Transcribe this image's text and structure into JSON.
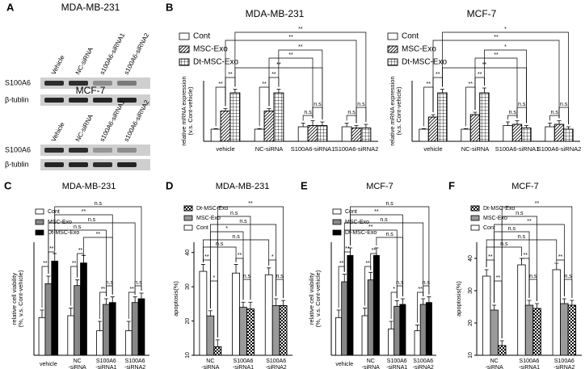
{
  "blot": {
    "panel": "A",
    "groups": [
      {
        "title": "MDA-MB-231",
        "lanes": [
          "Vehicle",
          "NC-siRNA",
          "s100A6-siRNA1",
          "s100A6-siRNA2"
        ],
        "rows": [
          "S100A6",
          "β-tublin"
        ]
      },
      {
        "title": "MCF-7",
        "lanes": [
          "Vehicle",
          "NC-siRNA",
          "s100A6-siRNA1",
          "s100A6-siRNA2"
        ],
        "rows": [
          "S100A6",
          "β-tublin"
        ]
      }
    ]
  },
  "chart_data": [
    {
      "type": "bar",
      "panel": "B",
      "title": "MDA-MB-231",
      "ylabel": "relative mRNA expression\n(v.s. Cont-vehicle)",
      "categories": [
        "vehicle",
        "NC-siRNA",
        "S100A6-siRNA1",
        "S100A6-siRNA2"
      ],
      "series": [
        {
          "name": "Cont",
          "color": "#ffffff",
          "pattern": "none",
          "values": [
            1,
            1,
            1.2,
            1.2
          ],
          "errors": [
            0.05,
            0.05,
            0.3,
            0.3
          ]
        },
        {
          "name": "MSC-Exo",
          "color": "#ffffff",
          "pattern": "diagonal",
          "values": [
            2.5,
            2.5,
            1.3,
            1.1
          ],
          "errors": [
            0.2,
            0.2,
            0.4,
            0.2
          ]
        },
        {
          "name": "Dt-MSC-Exo",
          "color": "#ffffff",
          "pattern": "grid",
          "values": [
            4,
            4,
            1.3,
            1.1
          ],
          "errors": [
            0.3,
            0.3,
            0.3,
            0.3
          ]
        }
      ],
      "ylim": [
        0,
        5
      ],
      "legend": "upper left",
      "legend_order": "normal",
      "annotations": [
        "**",
        "**",
        "**",
        "**",
        "n.s",
        "n.s",
        "n.s",
        "n.s",
        "**",
        "**",
        "**",
        "**",
        "**"
      ]
    },
    {
      "type": "bar",
      "title": "MCF-7",
      "ylabel": "relative mRNA expression\n(v.s. Cont-vehicle)",
      "categories": [
        "vehicle",
        "NC-siRNA",
        "S100A6-siRNA1",
        "S100A6-siRNA2"
      ],
      "series": [
        {
          "name": "Cont",
          "color": "#ffffff",
          "pattern": "none",
          "values": [
            1,
            1,
            1.3,
            1.2
          ],
          "errors": [
            0.05,
            0.05,
            0.3,
            0.3
          ]
        },
        {
          "name": "MSC-Exo",
          "color": "#ffffff",
          "pattern": "diagonal",
          "values": [
            2,
            2.2,
            1.4,
            1.4
          ],
          "errors": [
            0.2,
            0.2,
            0.3,
            0.3
          ]
        },
        {
          "name": "Dt-MSC-Exo",
          "color": "#ffffff",
          "pattern": "grid",
          "values": [
            4,
            4,
            1.1,
            1
          ],
          "errors": [
            0.3,
            0.4,
            0.2,
            0.2
          ]
        }
      ],
      "ylim": [
        0,
        5
      ],
      "legend": "upper left",
      "legend_order": "normal",
      "annotations": [
        "**",
        "**",
        "**",
        "**",
        "n.s",
        "n.s",
        "n.s",
        "n.s",
        "*",
        "**",
        "*",
        "**",
        "**"
      ]
    },
    {
      "type": "bar",
      "panel": "C",
      "title": "MDA-MB-231",
      "ylabel": "relative cell viability\n(%, v.s. Cont-vehicle)",
      "categories": [
        "vehicle",
        "NC\n-siRNA",
        "S100A6\n-siRNA1",
        "S100A6\n-siRNA2"
      ],
      "series": [
        {
          "name": "Cont",
          "color": "#ffffff",
          "pattern": "none",
          "values": [
            100,
            101,
            93,
            93
          ],
          "errors": [
            4,
            4,
            5,
            5
          ]
        },
        {
          "name": "MSC-Exo",
          "color": "#888888",
          "pattern": "none",
          "values": [
            118,
            117,
            107,
            108
          ],
          "errors": [
            4,
            3,
            3,
            3
          ]
        },
        {
          "name": "Dt-MSC-Exo",
          "color": "#000000",
          "pattern": "none",
          "values": [
            130,
            129,
            108,
            110
          ],
          "errors": [
            4,
            4,
            3,
            3
          ]
        }
      ],
      "ylim": [
        80,
        140
      ],
      "legend": "upper left",
      "legend_order": "normal",
      "annotations": [
        "**",
        "**",
        "**",
        "**",
        "**",
        "n.s",
        "**",
        "n.s",
        "n.s",
        "**",
        "n.s",
        "n.s",
        "**"
      ]
    },
    {
      "type": "bar",
      "panel": "D",
      "title": "MDA-MB-231",
      "ylabel": "apoptosis(%)",
      "categories": [
        "NC\n-siRNA",
        "S100A6\n-siRNA1",
        "S100A6\n-siRNA2"
      ],
      "series": [
        {
          "name": "Cont",
          "color": "#ffffff",
          "pattern": "none",
          "values": [
            34.5,
            34,
            33.5
          ],
          "errors": [
            2,
            2.5,
            2
          ]
        },
        {
          "name": "MSC-Exo",
          "color": "#9a9a9a",
          "pattern": "none",
          "values": [
            21.5,
            24,
            24.5
          ],
          "errors": [
            1.5,
            1.5,
            2
          ]
        },
        {
          "name": "Dt-MSC-Exo",
          "color": "#ffffff",
          "pattern": "checker",
          "values": [
            12.5,
            23.5,
            24.5
          ],
          "errors": [
            2,
            2,
            1.5
          ]
        }
      ],
      "ylim": [
        10,
        43
      ],
      "yticks": [
        10,
        20,
        30,
        40
      ],
      "legend": "upper left",
      "legend_order": "reverse",
      "annotations": [
        "**",
        "*",
        "**",
        "n.s",
        "*",
        "n.s",
        "**",
        "n.s",
        "n.s",
        "*",
        "n.s",
        "n.s"
      ]
    },
    {
      "type": "bar",
      "panel": "E",
      "title": "MCF-7",
      "ylabel": "relative cell viability\n(%, v.s. Cont-vehicle)",
      "categories": [
        "vehicle",
        "NC\n-siRNA",
        "S100A6\n-siRNA1",
        "S100A6\n-siRNA2"
      ],
      "series": [
        {
          "name": "Cont",
          "color": "#ffffff",
          "pattern": "none",
          "values": [
            100,
            101,
            94,
            93
          ],
          "errors": [
            4,
            4,
            4,
            3
          ]
        },
        {
          "name": "MSC-Exo",
          "color": "#888888",
          "pattern": "none",
          "values": [
            119,
            120,
            106,
            107
          ],
          "errors": [
            4,
            4,
            3,
            3
          ]
        },
        {
          "name": "Dt-MSC-Exo",
          "color": "#000000",
          "pattern": "none",
          "values": [
            133,
            133,
            107,
            108
          ],
          "errors": [
            4,
            4,
            3,
            3
          ]
        }
      ],
      "ylim": [
        80,
        140
      ],
      "legend": "upper left",
      "legend_order": "normal",
      "annotations": [
        "**",
        "**",
        "**",
        "**",
        "*",
        "n.s",
        "**",
        "n.s",
        "n.s",
        "**",
        "n.s",
        "**",
        "n.s"
      ]
    },
    {
      "type": "bar",
      "panel": "F",
      "title": "MCF-7",
      "ylabel": "apoptosis(%)",
      "categories": [
        "NC\n-siRNA",
        "S100A6\n-siRNA1",
        "S100A6\n-siRNA2"
      ],
      "series": [
        {
          "name": "Cont",
          "color": "#ffffff",
          "pattern": "none",
          "values": [
            34.5,
            38,
            36.5
          ],
          "errors": [
            2,
            2,
            2
          ]
        },
        {
          "name": "MSC-Exo",
          "color": "#9a9a9a",
          "pattern": "none",
          "values": [
            24,
            25.5,
            26
          ],
          "errors": [
            1.5,
            1.5,
            1.5
          ]
        },
        {
          "name": "Dt-MSC-Exo",
          "color": "#ffffff",
          "pattern": "checker",
          "values": [
            13,
            24.5,
            25.5
          ],
          "errors": [
            1.5,
            1.5,
            1.5
          ]
        }
      ],
      "ylim": [
        10,
        45
      ],
      "yticks": [
        10,
        20,
        30,
        40
      ],
      "legend": "upper left",
      "legend_order": "reverse",
      "annotations": [
        "**",
        "**",
        "**",
        "n.s",
        "**",
        "n.s",
        "**",
        "n.s",
        "**",
        "n.s",
        "n.s",
        "n.s"
      ]
    }
  ]
}
